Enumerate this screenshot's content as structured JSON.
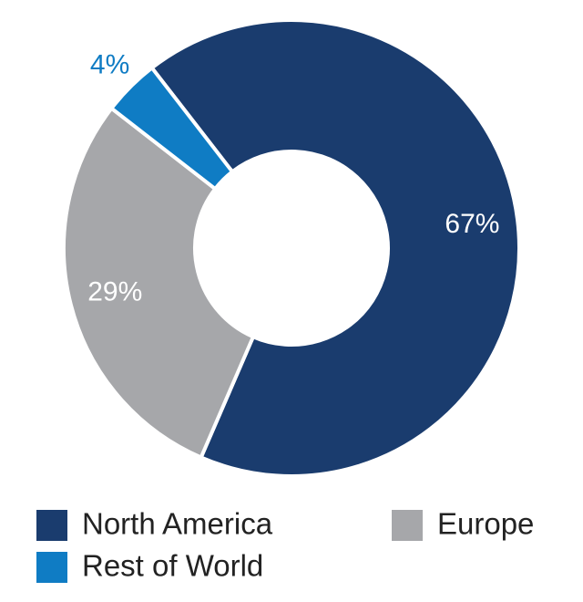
{
  "chart_data": {
    "type": "donut",
    "categories": [
      "North America",
      "Europe",
      "Rest of World"
    ],
    "values": [
      67,
      29,
      4
    ],
    "value_labels": [
      "67%",
      "29%",
      "4%"
    ],
    "colors": [
      "#1a3c6e",
      "#a6a7aa",
      "#0f7cc4"
    ]
  }
}
